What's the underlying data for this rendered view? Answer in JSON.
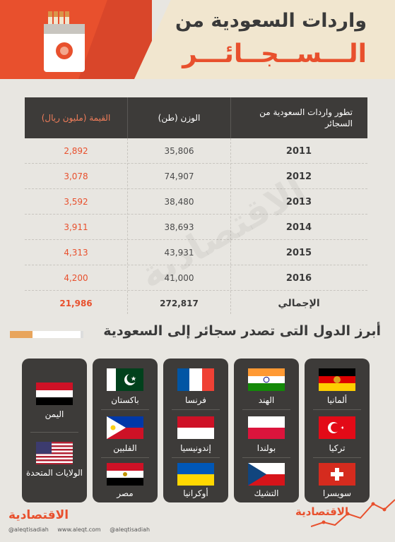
{
  "title": {
    "line1": "واردات السعودية من",
    "line2": "الـــســجــائـــر"
  },
  "table": {
    "headers": {
      "value": "القيمة (مليون ريال)",
      "weight": "الوزن (طن)",
      "year": "تطور واردات السعودية من السجائر"
    },
    "rows": [
      {
        "year": "2011",
        "weight": "35,806",
        "value": "2,892"
      },
      {
        "year": "2012",
        "weight": "74,907",
        "value": "3,078"
      },
      {
        "year": "2013",
        "weight": "38,480",
        "value": "3,592"
      },
      {
        "year": "2014",
        "weight": "38,693",
        "value": "3,911"
      },
      {
        "year": "2015",
        "weight": "43,931",
        "value": "4,313"
      },
      {
        "year": "2016",
        "weight": "41,000",
        "value": "4,200"
      }
    ],
    "total": {
      "label": "الإجمالي",
      "weight": "272,817",
      "value": "21,986"
    }
  },
  "subtitle": "أبرز الدول التى تصدر سجائر إلى السعودية",
  "countries": {
    "germany": "ألمانيا",
    "turkey": "تركيا",
    "switzerland": "سويسرا",
    "india": "الهند",
    "poland": "بولندا",
    "czech": "التشيك",
    "france": "فرنسا",
    "indonesia": "إندونيسيا",
    "ukraine": "أوكرانيا",
    "pakistan": "باكستان",
    "philippines": "الفلبين",
    "egypt": "مصر",
    "yemen": "اليمن",
    "usa": "الولايات المتحدة"
  },
  "footer": {
    "logo": "الاقتصادية",
    "twitter": "@aleqtisadiah",
    "web": "www.aleqt.com",
    "instagram": "@aleqtisadiah"
  },
  "colors": {
    "accent": "#e8502d",
    "dark": "#3d3b39",
    "background": "#e8e6e1"
  }
}
